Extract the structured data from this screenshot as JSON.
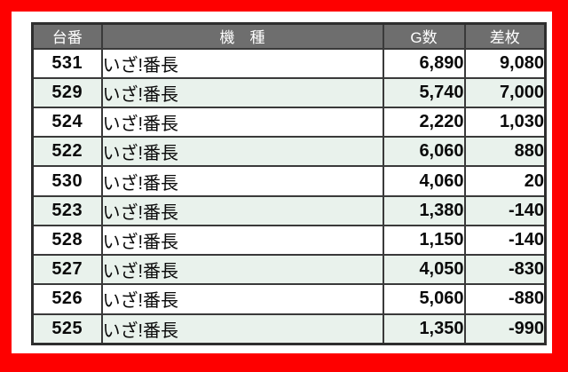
{
  "colors": {
    "frame_red": "#fe0000",
    "panel_white": "#ffffff",
    "header_gray": "#6e6e6e",
    "header_text": "#ffffff",
    "alt_row_green": "#e9f2ec",
    "border_dark": "#3a3a3a",
    "body_text": "#0a0a0a"
  },
  "table": {
    "columns": [
      {
        "key": "dai",
        "label": "台番"
      },
      {
        "key": "kishu",
        "label": "機　種"
      },
      {
        "key": "g",
        "label": "G数"
      },
      {
        "key": "sa",
        "label": "差枚"
      }
    ],
    "rows": [
      {
        "dai": "531",
        "kishu": "いざ!番長",
        "g": "6,890",
        "sa": "9,080"
      },
      {
        "dai": "529",
        "kishu": "いざ!番長",
        "g": "5,740",
        "sa": "7,000"
      },
      {
        "dai": "524",
        "kishu": "いざ!番長",
        "g": "2,220",
        "sa": "1,030"
      },
      {
        "dai": "522",
        "kishu": "いざ!番長",
        "g": "6,060",
        "sa": "880"
      },
      {
        "dai": "530",
        "kishu": "いざ!番長",
        "g": "4,060",
        "sa": "20"
      },
      {
        "dai": "523",
        "kishu": "いざ!番長",
        "g": "1,380",
        "sa": "-140"
      },
      {
        "dai": "528",
        "kishu": "いざ!番長",
        "g": "1,150",
        "sa": "-140"
      },
      {
        "dai": "527",
        "kishu": "いざ!番長",
        "g": "4,050",
        "sa": "-830"
      },
      {
        "dai": "526",
        "kishu": "いざ!番長",
        "g": "5,060",
        "sa": "-880"
      },
      {
        "dai": "525",
        "kishu": "いざ!番長",
        "g": "1,350",
        "sa": "-990"
      }
    ]
  },
  "chart_data": {
    "type": "table",
    "title": "",
    "columns": [
      "台番",
      "機　種",
      "G数",
      "差枚"
    ],
    "rows": [
      [
        "531",
        "いざ!番長",
        6890,
        9080
      ],
      [
        "529",
        "いざ!番長",
        5740,
        7000
      ],
      [
        "524",
        "いざ!番長",
        2220,
        1030
      ],
      [
        "522",
        "いざ!番長",
        6060,
        880
      ],
      [
        "530",
        "いざ!番長",
        4060,
        20
      ],
      [
        "523",
        "いざ!番長",
        1380,
        -140
      ],
      [
        "528",
        "いざ!番長",
        1150,
        -140
      ],
      [
        "527",
        "いざ!番長",
        4050,
        -830
      ],
      [
        "526",
        "いざ!番長",
        5060,
        -880
      ],
      [
        "525",
        "いざ!番長",
        1350,
        -990
      ]
    ],
    "layout_hints": {
      "sorted_by": "差枚 descending",
      "row_striping": "white / light-green alternating",
      "header_style": "gray background, white text"
    }
  }
}
